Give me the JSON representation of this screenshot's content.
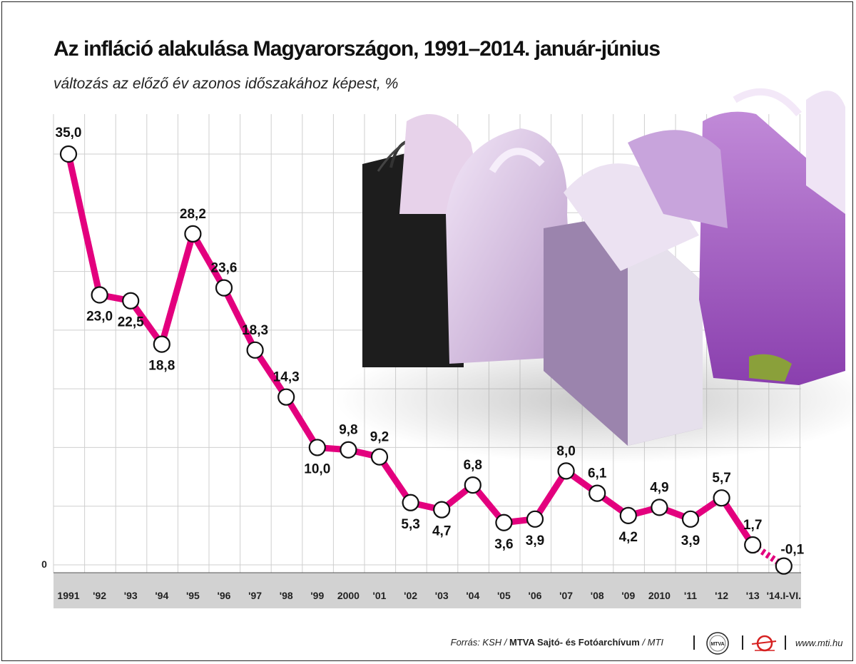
{
  "header": {
    "title": "Az infláció alakulása Magyarországon, 1991–2014. január-június",
    "subtitle": "változás az előző év azonos időszakához képest, %"
  },
  "chart_data": {
    "type": "line",
    "title": "Az infláció alakulása Magyarországon, 1991–2014. január-június",
    "subtitle": "változás az előző év azonos időszakához képest, %",
    "categories": [
      "1991",
      "'92",
      "'93",
      "'94",
      "'95",
      "'96",
      "'97",
      "'98",
      "'99",
      "2000",
      "'01",
      "'02",
      "'03",
      "'04",
      "'05",
      "'06",
      "'07",
      "'08",
      "'09",
      "2010",
      "'11",
      "'12",
      "'13",
      "'14.I-VI."
    ],
    "values": [
      35.0,
      23.0,
      22.5,
      18.8,
      28.2,
      23.6,
      18.3,
      14.3,
      10.0,
      9.8,
      9.2,
      5.3,
      4.7,
      6.8,
      3.6,
      3.9,
      8.0,
      6.1,
      4.2,
      4.9,
      3.9,
      5.7,
      1.7,
      -0.1
    ],
    "value_labels": [
      "35,0",
      "23,0",
      "22,5",
      "18,8",
      "28,2",
      "23,6",
      "18,3",
      "14,3",
      "10,0",
      "9,8",
      "9,2",
      "5,3",
      "4,7",
      "6,8",
      "3,6",
      "3,9",
      "8,0",
      "6,1",
      "4,2",
      "4,9",
      "3,9",
      "5,7",
      "1,7",
      "-0,1"
    ],
    "y_zero_label": "0",
    "ylim": [
      -0.1,
      35
    ],
    "grid": true,
    "line_color": "#e3007e",
    "marker_fill": "#ffffff"
  },
  "footer": {
    "source_prefix": "Forrás: KSH /",
    "source_org": "MTVA Sajtó- és Fotóarchívum",
    "source_suffix": "/ MTI",
    "logo_label": "MTVA",
    "website": "www.mti.hu"
  }
}
